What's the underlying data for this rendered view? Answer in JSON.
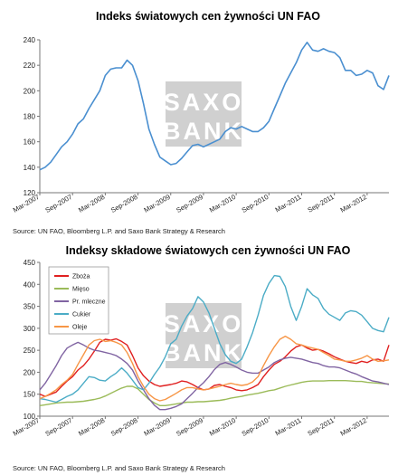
{
  "chart_data": [
    {
      "type": "line",
      "title": "Indeks światowych cen żywności UN FAO",
      "source": "Source: UN FAO, Bloomberg L.P. and Saxo Bank Strategy & Research",
      "watermark": [
        "SAXO",
        "BANK"
      ],
      "ylim": [
        120,
        240
      ],
      "yticks": [
        120,
        140,
        160,
        180,
        200,
        220,
        240
      ],
      "xtick_labels": [
        "Mar-2007",
        "Sep-2007",
        "Mar-2008",
        "Sep-2008",
        "Mar-2009",
        "Sep-2009",
        "Mar-2010",
        "Sep-2010",
        "Mar-2011",
        "Sep-2011",
        "Mar-2012"
      ],
      "x_start": "2007-03",
      "x_end": "2012-07",
      "grid": false,
      "series": [
        {
          "color": "#4a8fd0",
          "values": [
            138,
            140,
            144,
            150,
            156,
            160,
            166,
            174,
            178,
            186,
            193,
            200,
            212,
            217,
            218,
            218,
            224,
            220,
            208,
            190,
            170,
            158,
            148,
            145,
            142,
            143,
            147,
            152,
            157,
            158,
            156,
            158,
            160,
            162,
            168,
            171,
            170,
            172,
            170,
            168,
            168,
            171,
            176,
            186,
            196,
            206,
            214,
            222,
            232,
            238,
            232,
            231,
            233,
            231,
            230,
            226,
            216,
            216,
            212,
            213,
            216,
            214,
            204,
            201,
            212
          ]
        }
      ]
    },
    {
      "type": "line",
      "title": "Indeksy składowe światowych cen żywności UN FAO",
      "source": "Source:  UN FAO, Bloomberg L.P. and Saxo Bank Strategy & Research",
      "watermark": [
        "SAXO",
        "BANK"
      ],
      "ylim": [
        100,
        450
      ],
      "yticks": [
        100,
        150,
        200,
        250,
        300,
        350,
        400,
        450
      ],
      "xtick_labels": [
        "Mar-2007",
        "Sep-2007",
        "Mar-2008",
        "Sep-2008",
        "Mar-2009",
        "Sep-2009",
        "Mar-2010",
        "Sep-2010",
        "Mar-2011",
        "Sep-2011",
        "Mar-2012"
      ],
      "x_start": "2007-03",
      "x_end": "2012-07",
      "grid": false,
      "legend": "top-left",
      "series": [
        {
          "name": "Zboża",
          "color": "#e02020",
          "values": [
            150,
            145,
            150,
            155,
            168,
            180,
            190,
            205,
            215,
            230,
            248,
            268,
            275,
            273,
            276,
            270,
            262,
            238,
            210,
            192,
            180,
            172,
            168,
            170,
            172,
            175,
            180,
            178,
            172,
            165,
            160,
            162,
            170,
            172,
            168,
            165,
            160,
            158,
            160,
            165,
            172,
            190,
            205,
            218,
            225,
            235,
            248,
            258,
            262,
            255,
            250,
            252,
            248,
            242,
            235,
            230,
            225,
            222,
            220,
            225,
            222,
            228,
            230,
            225,
            262
          ]
        },
        {
          "name": "Mięso",
          "color": "#9bbb59",
          "values": [
            124,
            126,
            128,
            130,
            131,
            132,
            132,
            133,
            134,
            136,
            138,
            141,
            146,
            152,
            158,
            164,
            168,
            168,
            162,
            150,
            138,
            130,
            124,
            124,
            126,
            128,
            130,
            132,
            132,
            133,
            133,
            134,
            135,
            136,
            138,
            141,
            143,
            145,
            148,
            150,
            152,
            155,
            158,
            160,
            164,
            168,
            171,
            174,
            177,
            179,
            180,
            180,
            180,
            181,
            181,
            181,
            181,
            180,
            179,
            179,
            177,
            176,
            175,
            174,
            173
          ]
        },
        {
          "name": "Pr. mleczne",
          "color": "#8064a2",
          "values": [
            160,
            175,
            195,
            215,
            238,
            255,
            262,
            268,
            262,
            255,
            250,
            248,
            245,
            242,
            238,
            230,
            220,
            205,
            180,
            160,
            140,
            125,
            115,
            115,
            118,
            122,
            128,
            140,
            152,
            165,
            176,
            190,
            206,
            218,
            222,
            218,
            212,
            205,
            200,
            198,
            198,
            205,
            212,
            222,
            228,
            232,
            234,
            232,
            230,
            226,
            222,
            220,
            215,
            212,
            212,
            210,
            205,
            200,
            196,
            190,
            185,
            180,
            178,
            175,
            172
          ]
        },
        {
          "name": "Cukier",
          "color": "#4bacc6",
          "values": [
            140,
            138,
            135,
            132,
            138,
            145,
            150,
            160,
            175,
            190,
            188,
            182,
            180,
            190,
            198,
            210,
            198,
            182,
            165,
            160,
            175,
            195,
            212,
            235,
            265,
            275,
            305,
            328,
            345,
            372,
            360,
            335,
            300,
            265,
            240,
            225,
            220,
            230,
            258,
            290,
            330,
            375,
            402,
            420,
            418,
            395,
            350,
            318,
            350,
            390,
            376,
            368,
            345,
            332,
            325,
            318,
            335,
            340,
            338,
            330,
            315,
            300,
            295,
            292,
            325
          ]
        },
        {
          "name": "Oleje",
          "color": "#f79646",
          "values": [
            140,
            145,
            152,
            160,
            172,
            182,
            195,
            218,
            240,
            262,
            272,
            275,
            270,
            272,
            268,
            262,
            245,
            220,
            190,
            168,
            150,
            140,
            135,
            138,
            145,
            152,
            160,
            165,
            165,
            162,
            160,
            162,
            165,
            168,
            172,
            175,
            172,
            170,
            172,
            178,
            190,
            215,
            238,
            258,
            275,
            282,
            275,
            265,
            262,
            258,
            255,
            252,
            245,
            238,
            230,
            228,
            225,
            225,
            228,
            232,
            238,
            230,
            225,
            226,
            228
          ]
        }
      ]
    }
  ]
}
